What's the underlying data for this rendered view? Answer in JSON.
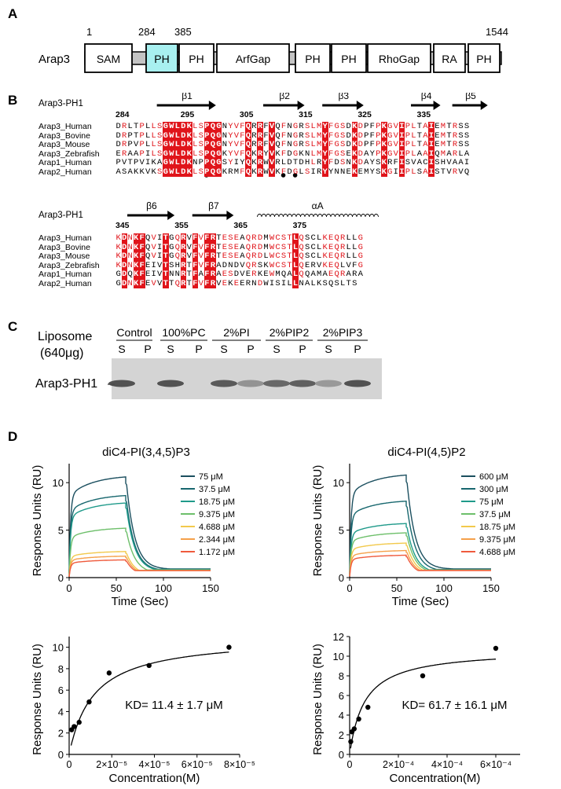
{
  "panels": {
    "a": "A",
    "b": "B",
    "c": "C",
    "d": "D"
  },
  "domain_map": {
    "protein": "Arap3",
    "pos_start": "1",
    "pos_284": "284",
    "pos_385": "385",
    "pos_end": "1544",
    "domains": [
      "SAM",
      "PH",
      "PH",
      "ArfGap",
      "PH",
      "PH",
      "RhoGap",
      "RA",
      "PH"
    ],
    "highlight_color": "#a8f0f0"
  },
  "alignment": {
    "block1": {
      "title": "Arap3-PH1",
      "numbers": [
        "284",
        "295",
        "305",
        "315",
        "325",
        "335"
      ],
      "ss": [
        "β1",
        "β2",
        "β3",
        "β4",
        "β5"
      ],
      "names": [
        "Arap3_Human",
        "Arap3_Bovine",
        "Arap3_Mouse",
        "Arap3_Zebrafish",
        "Arap1_Human",
        "Arap2_Human"
      ],
      "seqs": [
        "DRLTPLLSGWLDKLSPQGNYVFQRRFVQFNGRSLMYFGSDKDPFPKGVIPLTAIEMTRSS",
        "DRPTPLLSGWLDKLSPQGNYVFQRRFVQFNGRSLMYFGSDKDPFPKGVIPLTAIEMTRSS",
        "DRPVPLLSGWLDKLSPQGNYVFQRRFVQFNGRSLMYFGSDKDPFPKGVIPLTAIEMTRSS",
        "ERAAPILSGWLDKLSPQGKYVFQKRYVKFDGKNLMYFGSEKDAYPKGVIPLAAIQMARLA",
        "PVTPVIKAGWLDKNPPQGSYIYQKRWVRLDTDHLRYFDSNKDAYSKRFISVACISHVAAI",
        "ASAKKVKSGWLDKLSPQGKRMFQKRWVKFDGLSIRYYNNEKEMYSKGIIPLSAISTVRVQ"
      ]
    },
    "block2": {
      "title": "Arap3-PH1",
      "numbers": [
        "345",
        "355",
        "365",
        "375"
      ],
      "ss": [
        "β6",
        "β7",
        "αA"
      ],
      "names": [
        "Arap3_Human",
        "Arap3_Bovine",
        "Arap3_Mouse",
        "Arap3_Zebrafish",
        "Arap1_Human",
        "Arap2_Human"
      ],
      "seqs": [
        "KDNKFQVITGQRVFVFRTESEAQRDMWCSTLQSCLKEQRLLG",
        "KDNKFQVITGQRVFVFRTESEAQRDMWCSTLQSCLKEQRLLG",
        "KDNKFQVITGQRVFVFRTESEAQRDLWCSTLQSCLKEQRLLG",
        "KDNKFEIVTSHRTFVFRADNDVQRSKWCSTLQERVKEQLVFG",
        "GDQKFEIVTNNRTFAFRAESDVERKEWMQALQQAMAEQRARA",
        "GDNKFEVVTTQRTFVFRVEKEERNDWISILLNALKSQSLTS"
      ]
    }
  },
  "western": {
    "liposome_label": "Liposome",
    "amount_label": "(640μg)",
    "groups": [
      "Control",
      "100%PC",
      "2%PI",
      "2%PIP2",
      "2%PIP3"
    ],
    "lanes": [
      "S",
      "P",
      "S",
      "P",
      "S",
      "P",
      "S",
      "P",
      "S",
      "P"
    ],
    "band_label": "Arap3-PH1",
    "intensities": [
      0.9,
      0.0,
      0.9,
      0.0,
      0.85,
      0.45,
      0.75,
      0.8,
      0.4,
      0.9
    ]
  },
  "chart_data": [
    {
      "type": "line",
      "title": "diC4-PI(3,4,5)P3",
      "xlabel": "Time (Sec)",
      "ylabel": "Response Units (RU)",
      "xlim": [
        0,
        150
      ],
      "ylim": [
        0,
        12
      ],
      "xticks": [
        "0",
        "50",
        "100",
        "150"
      ],
      "yticks": [
        "0",
        "5",
        "10"
      ],
      "series": [
        {
          "name": "75 μM",
          "color": "#1b4f5f",
          "plateau": 10.8
        },
        {
          "name": "37.5 μM",
          "color": "#17676e",
          "plateau": 8.8
        },
        {
          "name": "18.75 μM",
          "color": "#1f9a8a",
          "plateau": 8.0
        },
        {
          "name": "9.375 μM",
          "color": "#6dbf6a",
          "plateau": 5.3
        },
        {
          "name": "4.688 μM",
          "color": "#f2c94c",
          "plateau": 2.8
        },
        {
          "name": "2.344 μM",
          "color": "#f5a04a",
          "plateau": 2.3
        },
        {
          "name": "1.172 μM",
          "color": "#ef5a3c",
          "plateau": 1.9
        }
      ]
    },
    {
      "type": "line",
      "title": "diC4-PI(4,5)P2",
      "xlabel": "Time (Sec)",
      "ylabel": "Response Units (RU)",
      "xlim": [
        0,
        150
      ],
      "ylim": [
        0,
        12
      ],
      "xticks": [
        "0",
        "50",
        "100",
        "150"
      ],
      "yticks": [
        "0",
        "5",
        "10"
      ],
      "series": [
        {
          "name": "600 μM",
          "color": "#1b4f5f",
          "plateau": 11.0
        },
        {
          "name": "300 μM",
          "color": "#17676e",
          "plateau": 8.2
        },
        {
          "name": "75 μM",
          "color": "#1f9a8a",
          "plateau": 5.8
        },
        {
          "name": "37.5 μM",
          "color": "#6dbf6a",
          "plateau": 4.8
        },
        {
          "name": "18.75 μM",
          "color": "#f2c94c",
          "plateau": 3.7
        },
        {
          "name": "9.375 μM",
          "color": "#f5a04a",
          "plateau": 2.9
        },
        {
          "name": "4.688 μM",
          "color": "#ef5a3c",
          "plateau": 2.4
        }
      ]
    },
    {
      "type": "scatter",
      "xlabel": "Concentration(M)",
      "ylabel": "Response Units (RU)",
      "xlim": [
        0,
        8e-05
      ],
      "ylim": [
        0,
        11
      ],
      "xticks": [
        "0",
        "2×10⁻⁵",
        "4×10⁻⁵",
        "6×10⁻⁵",
        "8×10⁻⁵"
      ],
      "yticks": [
        "0",
        "2",
        "4",
        "6",
        "8",
        "10"
      ],
      "x": [
        1.172e-06,
        2.344e-06,
        4.688e-06,
        9.375e-06,
        1.875e-05,
        3.75e-05,
        7.5e-05
      ],
      "y": [
        2.3,
        2.6,
        3.0,
        4.9,
        7.6,
        8.3,
        10.0
      ],
      "fit": {
        "Rmax": 11.0,
        "KD": 1.14e-05
      },
      "annotation": "KD= 11.4 ± 1.7 μM"
    },
    {
      "type": "scatter",
      "xlabel": "Concentration(M)",
      "ylabel": "Response Units (RU)",
      "xlim": [
        0,
        0.0007
      ],
      "ylim": [
        0,
        12
      ],
      "xticks": [
        "0",
        "2×10⁻⁴",
        "4×10⁻⁴",
        "6×10⁻⁴"
      ],
      "yticks": [
        "0",
        "2",
        "4",
        "6",
        "8",
        "10",
        "12"
      ],
      "x": [
        4.688e-06,
        9.375e-06,
        1.875e-05,
        3.75e-05,
        7.5e-05,
        0.0003,
        0.0006
      ],
      "y": [
        1.3,
        2.3,
        2.6,
        3.6,
        4.8,
        8.0,
        10.8
      ],
      "fit": {
        "Rmax": 10.7,
        "KD": 6.17e-05
      },
      "annotation": "KD= 61.7 ± 16.1 μM"
    }
  ]
}
